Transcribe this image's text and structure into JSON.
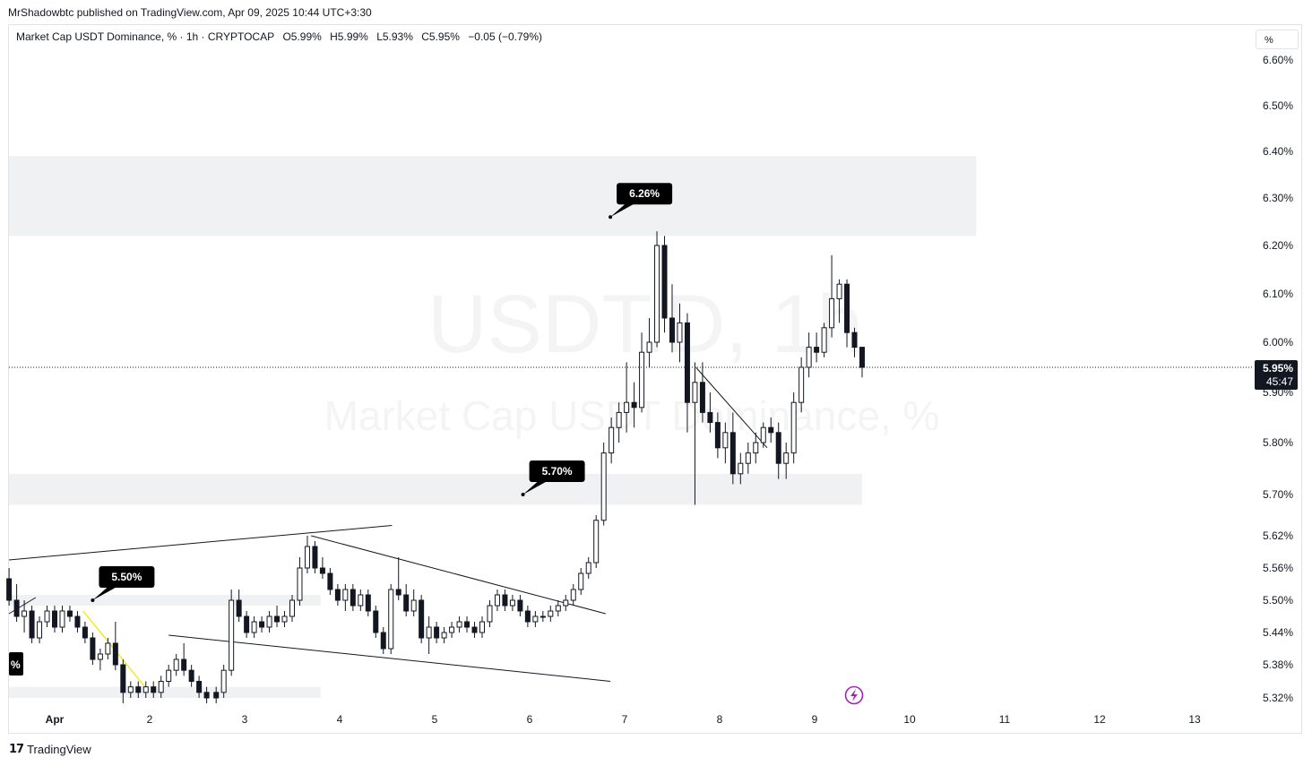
{
  "header": {
    "publisher": "MrShadowbtc published on TradingView.com, Apr 09, 2025 10:44 UTC+3:30"
  },
  "legend": {
    "title": "Market Cap USDT Dominance, % · 1h · CRYPTOCAP",
    "open": "O5.99%",
    "high": "H5.99%",
    "low": "L5.93%",
    "close": "C5.95%",
    "change": "−0.05 (−0.79%)"
  },
  "unit_selector": "%",
  "watermark": {
    "symbol": "USDT.D, 1h",
    "name": "Market Cap USDT Dominance, %"
  },
  "footer": {
    "brand": "TradingView"
  },
  "colors": {
    "candle": "#131722",
    "zone": "#f0f1f3",
    "bolt": "#9c27b0",
    "yellow": "#f5e400"
  },
  "chart_data": {
    "type": "candlestick",
    "y_axis": {
      "ticks": [
        "6.60%",
        "6.50%",
        "6.40%",
        "6.30%",
        "6.20%",
        "6.10%",
        "6.00%",
        "5.90%",
        "5.80%",
        "5.70%",
        "5.62%",
        "5.56%",
        "5.50%",
        "5.44%",
        "5.38%",
        "5.32%"
      ],
      "tick_values": [
        6.6,
        6.5,
        6.4,
        6.3,
        6.2,
        6.1,
        6.0,
        5.9,
        5.8,
        5.7,
        5.62,
        5.56,
        5.5,
        5.44,
        5.38,
        5.32
      ]
    },
    "x_axis": {
      "ticks": [
        "Apr",
        "2",
        "3",
        "4",
        "5",
        "6",
        "7",
        "8",
        "9",
        "10",
        "11",
        "12",
        "13"
      ],
      "tick_days": [
        1,
        2,
        3,
        4,
        5,
        6,
        7,
        8,
        9,
        10,
        11,
        12,
        13
      ]
    },
    "last_price": {
      "value": 5.95,
      "label": "5.95%",
      "countdown": "45:47"
    },
    "zones": [
      {
        "from": 6.22,
        "to": 6.39,
        "x_start": 0.5,
        "x_end": 10.7
      },
      {
        "from": 5.68,
        "to": 5.74,
        "x_start": 0.5,
        "x_end": 9.5
      },
      {
        "from": 5.49,
        "to": 5.51,
        "x_start": 0.5,
        "x_end": 3.8
      },
      {
        "from": 5.32,
        "to": 5.34,
        "x_start": 0.5,
        "x_end": 3.8
      }
    ],
    "labels": [
      {
        "text": "6.26%",
        "value": 6.26,
        "day": 6.85
      },
      {
        "text": "5.70%",
        "value": 5.7,
        "day": 5.93
      },
      {
        "text": "5.50%",
        "value": 5.5,
        "day": 1.4
      },
      {
        "text": "%",
        "value": 5.38,
        "day": 0.5
      }
    ],
    "trendlines": [
      {
        "from": [
          0.5,
          5.575
        ],
        "to": [
          4.55,
          5.64
        ]
      },
      {
        "from": [
          3.7,
          5.62
        ],
        "to": [
          6.8,
          5.475
        ]
      },
      {
        "from": [
          2.2,
          5.435
        ],
        "to": [
          6.85,
          5.35
        ]
      },
      {
        "from": [
          7.75,
          5.95
        ],
        "to": [
          8.5,
          5.79
        ]
      },
      {
        "from": [
          0.5,
          5.475
        ],
        "to": [
          0.8,
          5.505
        ]
      }
    ],
    "yellow_line": {
      "from": [
        1.3,
        5.48
      ],
      "to": [
        1.95,
        5.34
      ]
    },
    "candles": [
      {
        "day": 0.52,
        "o": 5.54,
        "h": 5.56,
        "l": 5.49,
        "c": 5.5
      },
      {
        "day": 0.6,
        "o": 5.5,
        "h": 5.53,
        "l": 5.46,
        "c": 5.47
      },
      {
        "day": 0.68,
        "o": 5.47,
        "h": 5.5,
        "l": 5.44,
        "c": 5.48
      },
      {
        "day": 0.76,
        "o": 5.48,
        "h": 5.49,
        "l": 5.42,
        "c": 5.43
      },
      {
        "day": 0.84,
        "o": 5.43,
        "h": 5.47,
        "l": 5.42,
        "c": 5.46
      },
      {
        "day": 0.92,
        "o": 5.46,
        "h": 5.49,
        "l": 5.45,
        "c": 5.48
      },
      {
        "day": 1.0,
        "o": 5.48,
        "h": 5.49,
        "l": 5.44,
        "c": 5.45
      },
      {
        "day": 1.08,
        "o": 5.45,
        "h": 5.49,
        "l": 5.44,
        "c": 5.48
      },
      {
        "day": 1.16,
        "o": 5.48,
        "h": 5.49,
        "l": 5.46,
        "c": 5.47
      },
      {
        "day": 1.24,
        "o": 5.47,
        "h": 5.48,
        "l": 5.44,
        "c": 5.45
      },
      {
        "day": 1.32,
        "o": 5.45,
        "h": 5.46,
        "l": 5.42,
        "c": 5.43
      },
      {
        "day": 1.4,
        "o": 5.43,
        "h": 5.44,
        "l": 5.38,
        "c": 5.39
      },
      {
        "day": 1.48,
        "o": 5.39,
        "h": 5.41,
        "l": 5.37,
        "c": 5.4
      },
      {
        "day": 1.56,
        "o": 5.4,
        "h": 5.43,
        "l": 5.39,
        "c": 5.42
      },
      {
        "day": 1.64,
        "o": 5.42,
        "h": 5.46,
        "l": 5.37,
        "c": 5.38
      },
      {
        "day": 1.72,
        "o": 5.38,
        "h": 5.39,
        "l": 5.31,
        "c": 5.33
      },
      {
        "day": 1.8,
        "o": 5.33,
        "h": 5.35,
        "l": 5.32,
        "c": 5.34
      },
      {
        "day": 1.88,
        "o": 5.34,
        "h": 5.35,
        "l": 5.32,
        "c": 5.33
      },
      {
        "day": 1.96,
        "o": 5.33,
        "h": 5.35,
        "l": 5.32,
        "c": 5.34
      },
      {
        "day": 2.04,
        "o": 5.34,
        "h": 5.35,
        "l": 5.32,
        "c": 5.33
      },
      {
        "day": 2.12,
        "o": 5.33,
        "h": 5.36,
        "l": 5.32,
        "c": 5.35
      },
      {
        "day": 2.2,
        "o": 5.35,
        "h": 5.38,
        "l": 5.34,
        "c": 5.37
      },
      {
        "day": 2.28,
        "o": 5.37,
        "h": 5.4,
        "l": 5.36,
        "c": 5.39
      },
      {
        "day": 2.36,
        "o": 5.39,
        "h": 5.42,
        "l": 5.36,
        "c": 5.37
      },
      {
        "day": 2.44,
        "o": 5.37,
        "h": 5.38,
        "l": 5.34,
        "c": 5.35
      },
      {
        "day": 2.52,
        "o": 5.35,
        "h": 5.36,
        "l": 5.32,
        "c": 5.33
      },
      {
        "day": 2.6,
        "o": 5.33,
        "h": 5.34,
        "l": 5.31,
        "c": 5.32
      },
      {
        "day": 2.7,
        "o": 5.33,
        "h": 5.34,
        "l": 5.31,
        "c": 5.32
      },
      {
        "day": 2.78,
        "o": 5.33,
        "h": 5.38,
        "l": 5.32,
        "c": 5.37
      },
      {
        "day": 2.86,
        "o": 5.37,
        "h": 5.52,
        "l": 5.36,
        "c": 5.5
      },
      {
        "day": 2.94,
        "o": 5.5,
        "h": 5.52,
        "l": 5.46,
        "c": 5.47
      },
      {
        "day": 3.02,
        "o": 5.47,
        "h": 5.48,
        "l": 5.43,
        "c": 5.44
      },
      {
        "day": 3.1,
        "o": 5.44,
        "h": 5.47,
        "l": 5.43,
        "c": 5.46
      },
      {
        "day": 3.18,
        "o": 5.46,
        "h": 5.47,
        "l": 5.44,
        "c": 5.45
      },
      {
        "day": 3.26,
        "o": 5.45,
        "h": 5.48,
        "l": 5.44,
        "c": 5.47
      },
      {
        "day": 3.34,
        "o": 5.47,
        "h": 5.49,
        "l": 5.45,
        "c": 5.46
      },
      {
        "day": 3.42,
        "o": 5.46,
        "h": 5.48,
        "l": 5.45,
        "c": 5.47
      },
      {
        "day": 3.5,
        "o": 5.47,
        "h": 5.51,
        "l": 5.46,
        "c": 5.5
      },
      {
        "day": 3.58,
        "o": 5.5,
        "h": 5.58,
        "l": 5.49,
        "c": 5.56
      },
      {
        "day": 3.66,
        "o": 5.56,
        "h": 5.62,
        "l": 5.55,
        "c": 5.6
      },
      {
        "day": 3.74,
        "o": 5.6,
        "h": 5.61,
        "l": 5.55,
        "c": 5.56
      },
      {
        "day": 3.82,
        "o": 5.56,
        "h": 5.58,
        "l": 5.54,
        "c": 5.55
      },
      {
        "day": 3.9,
        "o": 5.55,
        "h": 5.56,
        "l": 5.51,
        "c": 5.52
      },
      {
        "day": 3.98,
        "o": 5.52,
        "h": 5.53,
        "l": 5.49,
        "c": 5.5
      },
      {
        "day": 4.06,
        "o": 5.5,
        "h": 5.53,
        "l": 5.48,
        "c": 5.52
      },
      {
        "day": 4.14,
        "o": 5.52,
        "h": 5.53,
        "l": 5.48,
        "c": 5.49
      },
      {
        "day": 4.22,
        "o": 5.49,
        "h": 5.52,
        "l": 5.48,
        "c": 5.51
      },
      {
        "day": 4.3,
        "o": 5.51,
        "h": 5.52,
        "l": 5.47,
        "c": 5.48
      },
      {
        "day": 4.38,
        "o": 5.48,
        "h": 5.49,
        "l": 5.43,
        "c": 5.44
      },
      {
        "day": 4.46,
        "o": 5.44,
        "h": 5.45,
        "l": 5.4,
        "c": 5.41
      },
      {
        "day": 4.54,
        "o": 5.41,
        "h": 5.53,
        "l": 5.4,
        "c": 5.52
      },
      {
        "day": 4.62,
        "o": 5.52,
        "h": 5.58,
        "l": 5.5,
        "c": 5.51
      },
      {
        "day": 4.7,
        "o": 5.51,
        "h": 5.53,
        "l": 5.47,
        "c": 5.48
      },
      {
        "day": 4.78,
        "o": 5.48,
        "h": 5.52,
        "l": 5.47,
        "c": 5.5
      },
      {
        "day": 4.86,
        "o": 5.5,
        "h": 5.51,
        "l": 5.42,
        "c": 5.43
      },
      {
        "day": 4.94,
        "o": 5.43,
        "h": 5.47,
        "l": 5.4,
        "c": 5.45
      },
      {
        "day": 5.02,
        "o": 5.45,
        "h": 5.46,
        "l": 5.42,
        "c": 5.43
      },
      {
        "day": 5.1,
        "o": 5.43,
        "h": 5.45,
        "l": 5.42,
        "c": 5.44
      },
      {
        "day": 5.18,
        "o": 5.44,
        "h": 5.46,
        "l": 5.43,
        "c": 5.45
      },
      {
        "day": 5.26,
        "o": 5.45,
        "h": 5.47,
        "l": 5.44,
        "c": 5.46
      },
      {
        "day": 5.34,
        "o": 5.46,
        "h": 5.47,
        "l": 5.44,
        "c": 5.45
      },
      {
        "day": 5.42,
        "o": 5.45,
        "h": 5.46,
        "l": 5.43,
        "c": 5.44
      },
      {
        "day": 5.5,
        "o": 5.44,
        "h": 5.47,
        "l": 5.43,
        "c": 5.46
      },
      {
        "day": 5.58,
        "o": 5.46,
        "h": 5.5,
        "l": 5.45,
        "c": 5.49
      },
      {
        "day": 5.66,
        "o": 5.49,
        "h": 5.52,
        "l": 5.48,
        "c": 5.51
      },
      {
        "day": 5.74,
        "o": 5.51,
        "h": 5.52,
        "l": 5.48,
        "c": 5.49
      },
      {
        "day": 5.82,
        "o": 5.49,
        "h": 5.51,
        "l": 5.48,
        "c": 5.5
      },
      {
        "day": 5.9,
        "o": 5.5,
        "h": 5.51,
        "l": 5.47,
        "c": 5.48
      },
      {
        "day": 5.98,
        "o": 5.48,
        "h": 5.49,
        "l": 5.45,
        "c": 5.46
      },
      {
        "day": 6.06,
        "o": 5.46,
        "h": 5.48,
        "l": 5.45,
        "c": 5.47
      },
      {
        "day": 6.14,
        "o": 5.47,
        "h": 5.48,
        "l": 5.46,
        "c": 5.47
      },
      {
        "day": 6.22,
        "o": 5.47,
        "h": 5.49,
        "l": 5.46,
        "c": 5.48
      },
      {
        "day": 6.3,
        "o": 5.48,
        "h": 5.5,
        "l": 5.47,
        "c": 5.49
      },
      {
        "day": 6.38,
        "o": 5.49,
        "h": 5.51,
        "l": 5.48,
        "c": 5.5
      },
      {
        "day": 6.46,
        "o": 5.5,
        "h": 5.53,
        "l": 5.49,
        "c": 5.52
      },
      {
        "day": 6.54,
        "o": 5.52,
        "h": 5.56,
        "l": 5.51,
        "c": 5.55
      },
      {
        "day": 6.62,
        "o": 5.55,
        "h": 5.58,
        "l": 5.54,
        "c": 5.57
      },
      {
        "day": 6.7,
        "o": 5.57,
        "h": 5.66,
        "l": 5.56,
        "c": 5.65
      },
      {
        "day": 6.78,
        "o": 5.65,
        "h": 5.8,
        "l": 5.64,
        "c": 5.78
      },
      {
        "day": 6.86,
        "o": 5.78,
        "h": 5.85,
        "l": 5.76,
        "c": 5.83
      },
      {
        "day": 6.94,
        "o": 5.83,
        "h": 5.88,
        "l": 5.8,
        "c": 5.86
      },
      {
        "day": 7.02,
        "o": 5.86,
        "h": 5.96,
        "l": 5.82,
        "c": 5.88
      },
      {
        "day": 7.1,
        "o": 5.88,
        "h": 5.92,
        "l": 5.83,
        "c": 5.87
      },
      {
        "day": 7.18,
        "o": 5.87,
        "h": 6.02,
        "l": 5.86,
        "c": 5.98
      },
      {
        "day": 7.26,
        "o": 5.98,
        "h": 6.05,
        "l": 5.95,
        "c": 6.0
      },
      {
        "day": 7.34,
        "o": 6.0,
        "h": 6.23,
        "l": 5.99,
        "c": 6.2
      },
      {
        "day": 7.42,
        "o": 6.2,
        "h": 6.22,
        "l": 6.02,
        "c": 6.05
      },
      {
        "day": 7.5,
        "o": 6.05,
        "h": 6.12,
        "l": 5.98,
        "c": 6.0
      },
      {
        "day": 7.58,
        "o": 6.0,
        "h": 6.08,
        "l": 5.96,
        "c": 6.04
      },
      {
        "day": 7.66,
        "o": 6.04,
        "h": 6.06,
        "l": 5.82,
        "c": 5.88
      },
      {
        "day": 7.74,
        "o": 5.88,
        "h": 5.96,
        "l": 5.68,
        "c": 5.92
      },
      {
        "day": 7.82,
        "o": 5.92,
        "h": 5.96,
        "l": 5.84,
        "c": 5.86
      },
      {
        "day": 7.9,
        "o": 5.86,
        "h": 5.9,
        "l": 5.82,
        "c": 5.84
      },
      {
        "day": 7.98,
        "o": 5.84,
        "h": 5.86,
        "l": 5.77,
        "c": 5.79
      },
      {
        "day": 8.06,
        "o": 5.79,
        "h": 5.84,
        "l": 5.76,
        "c": 5.82
      },
      {
        "day": 8.14,
        "o": 5.82,
        "h": 5.86,
        "l": 5.72,
        "c": 5.74
      },
      {
        "day": 8.22,
        "o": 5.74,
        "h": 5.78,
        "l": 5.72,
        "c": 5.76
      },
      {
        "day": 8.3,
        "o": 5.76,
        "h": 5.8,
        "l": 5.74,
        "c": 5.78
      },
      {
        "day": 8.38,
        "o": 5.78,
        "h": 5.82,
        "l": 5.76,
        "c": 5.8
      },
      {
        "day": 8.46,
        "o": 5.8,
        "h": 5.84,
        "l": 5.79,
        "c": 5.83
      },
      {
        "day": 8.54,
        "o": 5.83,
        "h": 5.85,
        "l": 5.8,
        "c": 5.82
      },
      {
        "day": 8.62,
        "o": 5.82,
        "h": 5.84,
        "l": 5.73,
        "c": 5.76
      },
      {
        "day": 8.7,
        "o": 5.76,
        "h": 5.8,
        "l": 5.73,
        "c": 5.78
      },
      {
        "day": 8.78,
        "o": 5.78,
        "h": 5.9,
        "l": 5.76,
        "c": 5.88
      },
      {
        "day": 8.86,
        "o": 5.88,
        "h": 5.97,
        "l": 5.86,
        "c": 5.95
      },
      {
        "day": 8.94,
        "o": 5.95,
        "h": 6.02,
        "l": 5.93,
        "c": 5.99
      },
      {
        "day": 9.02,
        "o": 5.99,
        "h": 6.02,
        "l": 5.96,
        "c": 5.98
      },
      {
        "day": 9.1,
        "o": 5.98,
        "h": 6.04,
        "l": 5.97,
        "c": 6.03
      },
      {
        "day": 9.18,
        "o": 6.03,
        "h": 6.18,
        "l": 6.01,
        "c": 6.09
      },
      {
        "day": 9.26,
        "o": 6.09,
        "h": 6.13,
        "l": 6.04,
        "c": 6.12
      },
      {
        "day": 9.34,
        "o": 6.12,
        "h": 6.13,
        "l": 5.99,
        "c": 6.02
      },
      {
        "day": 9.42,
        "o": 6.02,
        "h": 6.03,
        "l": 5.97,
        "c": 5.99
      },
      {
        "day": 9.5,
        "o": 5.99,
        "h": 5.99,
        "l": 5.93,
        "c": 5.95
      }
    ]
  }
}
